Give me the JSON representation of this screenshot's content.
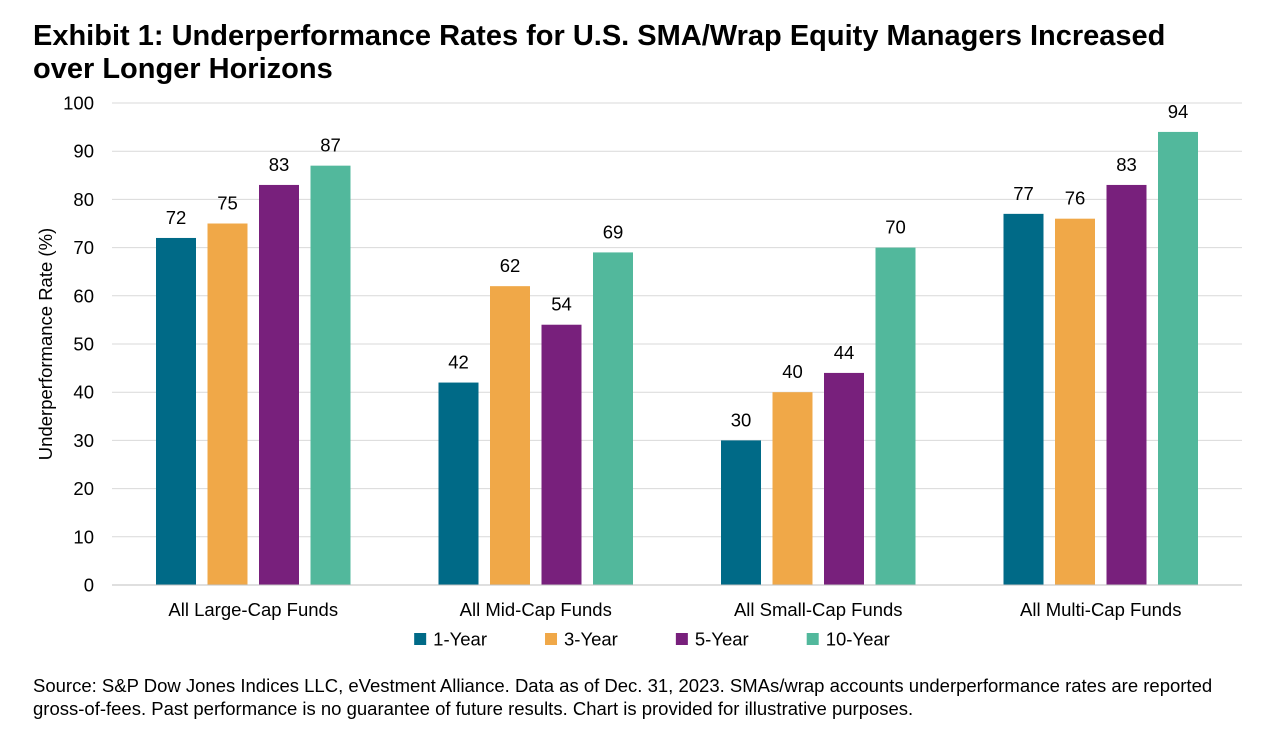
{
  "title": "Exhibit 1: Underperformance Rates for U.S. SMA/Wrap Equity Managers Increased over Longer Horizons",
  "source": "Source: S&P Dow Jones Indices LLC, eVestment Alliance. Data as of Dec. 31, 2023. SMAs/wrap accounts underperformance rates are reported gross-of-fees. Past performance is no guarantee of future results. Chart is provided for illustrative purposes.",
  "colors": {
    "1-Year": "#006a87",
    "3-Year": "#f0a848",
    "5-Year": "#78207c",
    "10-Year": "#52b89c",
    "grid": "#d9d9d9",
    "axis": "#bfbfbf"
  },
  "chart_data": {
    "type": "bar",
    "title": "Exhibit 1: Underperformance Rates for U.S. SMA/Wrap Equity Managers Increased over Longer Horizons",
    "xlabel": "",
    "ylabel": "Underperformance Rate (%)",
    "ylim": [
      0,
      100
    ],
    "yticks": [
      0,
      10,
      20,
      30,
      40,
      50,
      60,
      70,
      80,
      90,
      100
    ],
    "grid": true,
    "legend": "bottom",
    "categories": [
      "All Large-Cap Funds",
      "All Mid-Cap Funds",
      "All Small-Cap Funds",
      "All Multi-Cap Funds"
    ],
    "series": [
      {
        "name": "1-Year",
        "values": [
          72,
          42,
          30,
          77
        ],
        "labels": [
          "72",
          "42",
          "30",
          "77"
        ]
      },
      {
        "name": "3-Year",
        "values": [
          75,
          62,
          40,
          76
        ],
        "labels": [
          "75",
          "62",
          "40",
          "76"
        ]
      },
      {
        "name": "5-Year",
        "values": [
          83,
          54,
          44,
          83
        ],
        "labels": [
          "83",
          "54",
          "44",
          "83"
        ]
      },
      {
        "name": "10-Year",
        "values": [
          87,
          69,
          70,
          94
        ],
        "labels": [
          "87",
          "69",
          "70",
          "94"
        ]
      }
    ]
  }
}
